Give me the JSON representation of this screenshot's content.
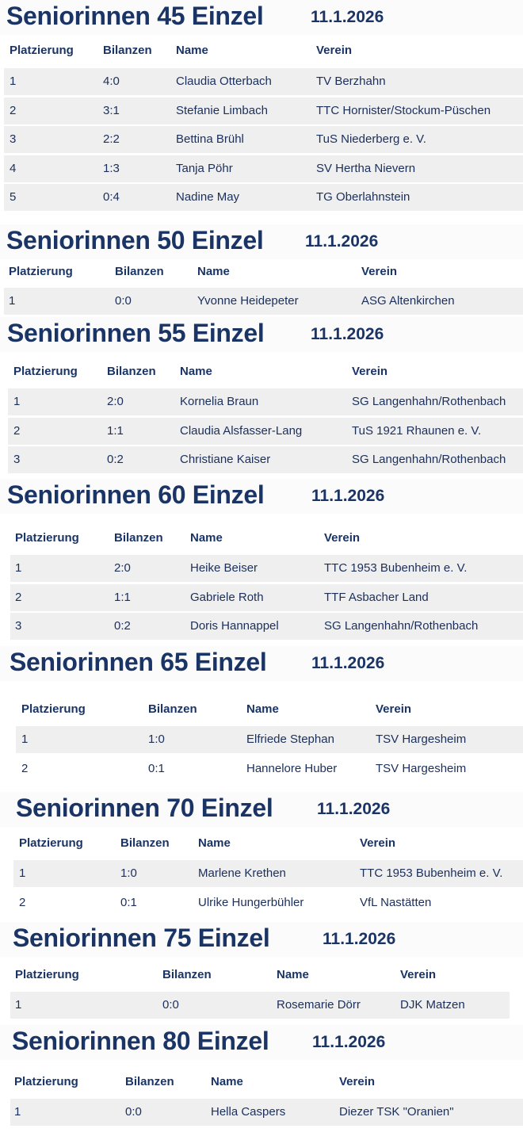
{
  "sections": [
    {
      "title": "Seniorinnen 45 Einzel",
      "date": "11.1.2026",
      "headers": [
        "Platzierung",
        "Bilanzen",
        "Name",
        "Verein"
      ],
      "rows": [
        [
          "1",
          "4:0",
          "Claudia Otterbach",
          "TV Berzhahn"
        ],
        [
          "2",
          "3:1",
          "Stefanie Limbach",
          "TTC Hornister/Stockum-Püschen"
        ],
        [
          "3",
          "2:2",
          "Bettina Brühl",
          "TuS Niederberg e. V."
        ],
        [
          "4",
          "1:3",
          "Tanja Pöhr",
          "SV Hertha Nievern"
        ],
        [
          "5",
          "0:4",
          "Nadine May",
          "TG Oberlahnstein"
        ]
      ]
    },
    {
      "title": "Seniorinnen 50 Einzel",
      "date": "11.1.2026",
      "headers": [
        "Platzierung",
        "Bilanzen",
        "Name",
        "Verein"
      ],
      "rows": [
        [
          "1",
          "0:0",
          "Yvonne Heidepeter",
          "ASG Altenkirchen"
        ]
      ]
    },
    {
      "title": "Seniorinnen 55 Einzel",
      "date": "11.1.2026",
      "headers": [
        "Platzierung",
        "Bilanzen",
        "Name",
        "Verein"
      ],
      "rows": [
        [
          "1",
          "2:0",
          "Kornelia Braun",
          "SG Langenhahn/Rothenbach"
        ],
        [
          "2",
          "1:1",
          "Claudia Alsfasser-Lang",
          "TuS 1921 Rhaunen e. V."
        ],
        [
          "3",
          "0:2",
          "Christiane Kaiser",
          "SG Langenhahn/Rothenbach"
        ]
      ]
    },
    {
      "title": "Seniorinnen 60 Einzel",
      "date": "11.1.2026",
      "headers": [
        "Platzierung",
        "Bilanzen",
        "Name",
        "Verein"
      ],
      "rows": [
        [
          "1",
          "2:0",
          "Heike Beiser",
          "TTC 1953 Bubenheim e. V."
        ],
        [
          "2",
          "1:1",
          "Gabriele Roth",
          "TTF Asbacher Land"
        ],
        [
          "3",
          "0:2",
          "Doris Hannappel",
          "SG Langenhahn/Rothenbach"
        ]
      ]
    },
    {
      "title": "Seniorinnen 65 Einzel",
      "date": "11.1.2026",
      "headers": [
        "Platzierung",
        "Bilanzen",
        "Name",
        "Verein"
      ],
      "rows": [
        [
          "1",
          "1:0",
          "Elfriede Stephan",
          "TSV Hargesheim"
        ],
        [
          "2",
          "0:1",
          "Hannelore Huber",
          "TSV Hargesheim"
        ]
      ]
    },
    {
      "title": "Seniorinnen 70 Einzel",
      "date": "11.1.2026",
      "headers": [
        "Platzierung",
        "Bilanzen",
        "Name",
        "Verein"
      ],
      "rows": [
        [
          "1",
          "1:0",
          "Marlene Krethen",
          "TTC 1953 Bubenheim e. V."
        ],
        [
          "2",
          "0:1",
          "Ulrike Hungerbühler",
          "VfL Nastätten"
        ]
      ]
    },
    {
      "title": "Seniorinnen 75 Einzel",
      "date": "11.1.2026",
      "headers": [
        "Platzierung",
        "Bilanzen",
        "Name",
        "Verein"
      ],
      "rows": [
        [
          "1",
          "0:0",
          "Rosemarie Dörr",
          "DJK Matzen"
        ]
      ]
    },
    {
      "title": "Seniorinnen 80 Einzel",
      "date": "11.1.2026",
      "headers": [
        "Platzierung",
        "Bilanzen",
        "Name",
        "Verein"
      ],
      "rows": [
        [
          "1",
          "0:0",
          "Hella Caspers",
          "Diezer TSK \"Oranien\""
        ]
      ]
    }
  ]
}
